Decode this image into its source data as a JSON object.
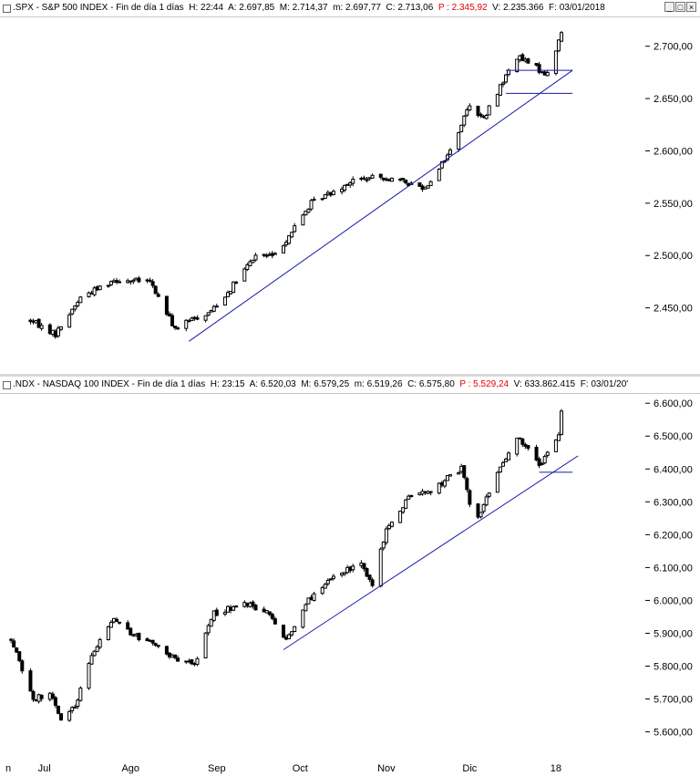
{
  "spx": {
    "header": {
      "name": ".SPX - S&P 500 INDEX - Fin de día 1 días",
      "h": "H: 22:44",
      "a": "A: 2.697,85",
      "m": "M: 2.714,37",
      "mm": "m: 2.697,77",
      "c": "C: 2.713,06",
      "p": "P : 2.345,92",
      "v": "V: 2.235.366",
      "f": "F: 03/01/2018"
    }
  },
  "ndx": {
    "header": {
      "name": ".NDX - NASDAQ 100 INDEX - Fin de día 1 días",
      "h": "H: 23:15",
      "a": "A: 6.520,03",
      "m": "M: 6.579,25",
      "mm": "m: 6.519,26",
      "c": "C: 6.575,80",
      "p": "P : 5.529,24",
      "v": "V: 633.862.415",
      "f": "F: 03/01/20'"
    }
  },
  "colors": {
    "up_fill": "#ffffff",
    "down_fill": "#000000",
    "trendline": "#1a1aaa",
    "header_p": "#e00000"
  },
  "icons": [
    "panel-icon",
    "minimize-icon",
    "maximize-icon",
    "close-icon"
  ],
  "x_axis": {
    "labels": [
      "n",
      "Jul",
      "Ago",
      "Sep",
      "Oct",
      "Nov",
      "Dic",
      "18"
    ]
  },
  "chart_data": [
    {
      "type": "candlestick",
      "title": ".SPX - S&P 500 INDEX",
      "y_ticks": [
        "2.450,00",
        "2.500,00",
        "2.550,00",
        "2.600,00",
        "2.650,00",
        "2.700,00"
      ],
      "ylim": [
        2400,
        2725
      ],
      "grid": false,
      "anchors": [
        [
          "2017-06-26",
          2438
        ],
        [
          "2017-07-05",
          2425
        ],
        [
          "2017-07-14",
          2460
        ],
        [
          "2017-07-26",
          2477
        ],
        [
          "2017-08-08",
          2475
        ],
        [
          "2017-08-17",
          2430
        ],
        [
          "2017-08-24",
          2440
        ],
        [
          "2017-08-29",
          2445
        ],
        [
          "2017-09-05",
          2465
        ],
        [
          "2017-09-15",
          2500
        ],
        [
          "2017-09-22",
          2500
        ],
        [
          "2017-10-05",
          2550
        ],
        [
          "2017-10-20",
          2572
        ],
        [
          "2017-10-31",
          2575
        ],
        [
          "2017-11-15",
          2565
        ],
        [
          "2017-11-24",
          2600
        ],
        [
          "2017-12-01",
          2645
        ],
        [
          "2017-12-06",
          2630
        ],
        [
          "2017-12-12",
          2662
        ],
        [
          "2017-12-18",
          2690
        ],
        [
          "2017-12-29",
          2673
        ],
        [
          "2018-01-03",
          2713
        ]
      ],
      "trendlines": [
        {
          "points": [
            [
              "2017-08-22",
              2418
            ],
            [
              "2018-01-07",
              2677
            ]
          ]
        }
      ],
      "horizontal_lines": [
        {
          "value": 2677,
          "from": "2017-12-14",
          "to": "2018-01-07"
        },
        {
          "value": 2655,
          "from": "2017-12-14",
          "to": "2018-01-07"
        }
      ]
    },
    {
      "type": "candlestick",
      "title": ".NDX - NASDAQ 100 INDEX",
      "y_ticks": [
        "5.600,00",
        "5.700,00",
        "5.800,00",
        "5.900,00",
        "6.000,00",
        "6.100,00",
        "6.200,00",
        "6.300,00",
        "6.400,00",
        "6.500,00",
        "6.600,00"
      ],
      "ylim": [
        5560,
        6620
      ],
      "grid": false,
      "anchors": [
        [
          "2017-06-19",
          5880
        ],
        [
          "2017-06-27",
          5700
        ],
        [
          "2017-07-03",
          5720
        ],
        [
          "2017-07-07",
          5640
        ],
        [
          "2017-07-12",
          5680
        ],
        [
          "2017-07-18",
          5830
        ],
        [
          "2017-07-26",
          5950
        ],
        [
          "2017-08-01",
          5900
        ],
        [
          "2017-08-10",
          5860
        ],
        [
          "2017-08-17",
          5820
        ],
        [
          "2017-08-24",
          5810
        ],
        [
          "2017-08-31",
          5960
        ],
        [
          "2017-09-12",
          5990
        ],
        [
          "2017-09-20",
          5960
        ],
        [
          "2017-09-26",
          5880
        ],
        [
          "2017-10-03",
          5990
        ],
        [
          "2017-10-13",
          6080
        ],
        [
          "2017-10-23",
          6110
        ],
        [
          "2017-10-27",
          6050
        ],
        [
          "2017-11-01",
          6220
        ],
        [
          "2017-11-10",
          6320
        ],
        [
          "2017-11-17",
          6330
        ],
        [
          "2017-11-24",
          6380
        ],
        [
          "2017-11-28",
          6400
        ],
        [
          "2017-12-01",
          6300
        ],
        [
          "2017-12-04",
          6250
        ],
        [
          "2017-12-11",
          6390
        ],
        [
          "2017-12-18",
          6500
        ],
        [
          "2017-12-26",
          6410
        ],
        [
          "2018-01-02",
          6510
        ],
        [
          "2018-01-03",
          6576
        ]
      ],
      "trendlines": [
        {
          "points": [
            [
              "2017-09-25",
              5850
            ],
            [
              "2018-01-09",
              6440
            ]
          ]
        }
      ],
      "horizontal_lines": [
        {
          "value": 6390,
          "from": "2017-12-26",
          "to": "2018-01-07"
        }
      ]
    }
  ]
}
